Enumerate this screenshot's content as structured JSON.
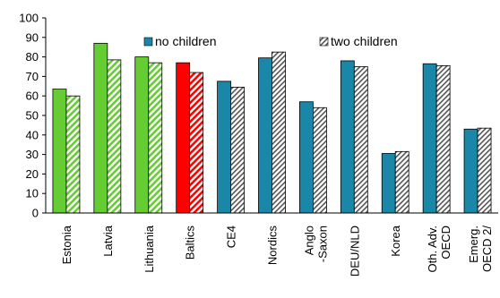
{
  "chart_data": {
    "type": "bar",
    "title": "",
    "xlabel": "",
    "ylabel": "",
    "ylim": [
      0,
      100
    ],
    "yticks": [
      0,
      10,
      20,
      30,
      40,
      50,
      60,
      70,
      80,
      90,
      100
    ],
    "grid": false,
    "legend_position": "top-center",
    "categories": [
      [
        "Estonia"
      ],
      [
        "Latvia"
      ],
      [
        "Lithuania"
      ],
      [
        "Baltics"
      ],
      [
        "CE4"
      ],
      [
        "Nordics"
      ],
      [
        "Anglo",
        "-Saxon"
      ],
      [
        "DEU/NLD"
      ],
      [
        "Korea"
      ],
      [
        "Oth. Adv.",
        "OECD"
      ],
      [
        "Emerg.",
        "OECD 2/"
      ]
    ],
    "series": [
      {
        "name": "no children",
        "values": [
          63.5,
          87,
          80,
          77,
          67.5,
          79.5,
          57,
          78,
          30.5,
          76.5,
          43
        ]
      },
      {
        "name": "two children",
        "values": [
          60,
          78.5,
          77,
          72,
          64.5,
          82.5,
          54,
          75,
          31.5,
          75.5,
          43.5
        ]
      }
    ],
    "colors": {
      "baltic_country": "#66cc33",
      "baltics_aggregate": "#ff0000",
      "comparator": "#1b87a8",
      "legend_no_children": "#1b87a8",
      "hatch_stroke": "#555555"
    }
  }
}
